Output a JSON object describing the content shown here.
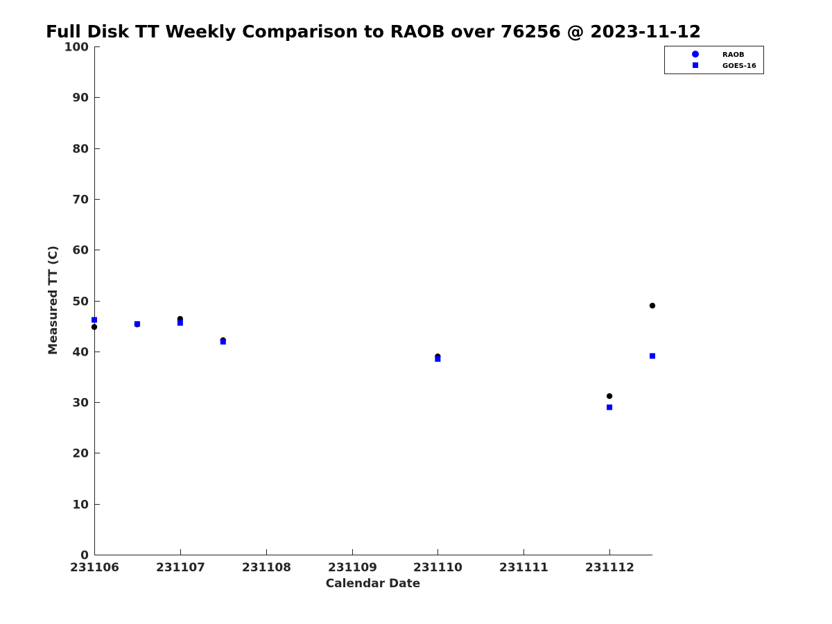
{
  "chart_data": {
    "type": "scatter",
    "title": "Full Disk TT Weekly Comparison to RAOB over 76256 @ 2023-11-12",
    "xlabel": "Calendar Date",
    "ylabel": "Measured TT (C)",
    "xlim": [
      0,
      6.5
    ],
    "ylim": [
      0,
      100
    ],
    "x_ticks": [
      0,
      1,
      2,
      3,
      4,
      5,
      6
    ],
    "x_tick_labels": [
      "231106",
      "231107",
      "231108",
      "231109",
      "231110",
      "231111",
      "231112"
    ],
    "y_ticks": [
      0,
      10,
      20,
      30,
      40,
      50,
      60,
      70,
      80,
      90,
      100
    ],
    "y_tick_labels": [
      "0",
      "10",
      "20",
      "30",
      "40",
      "50",
      "60",
      "70",
      "80",
      "90",
      "100"
    ],
    "grid": false,
    "legend_position": "top-right",
    "series": [
      {
        "name": "RAOB",
        "marker": "circle",
        "color": "#000000",
        "legend_color": "#0000ff",
        "x": [
          0,
          0.5,
          1,
          1.5,
          4,
          6,
          6.5
        ],
        "y": [
          44.8,
          45.3,
          46.4,
          42.2,
          39.0,
          31.2,
          49.0
        ]
      },
      {
        "name": "GOES-16",
        "marker": "square",
        "color": "#0000ff",
        "legend_color": "#0000ff",
        "x": [
          0,
          0.5,
          1,
          1.5,
          4,
          6,
          6.5
        ],
        "y": [
          46.2,
          45.4,
          45.6,
          41.9,
          38.5,
          29.0,
          39.1
        ]
      }
    ]
  }
}
